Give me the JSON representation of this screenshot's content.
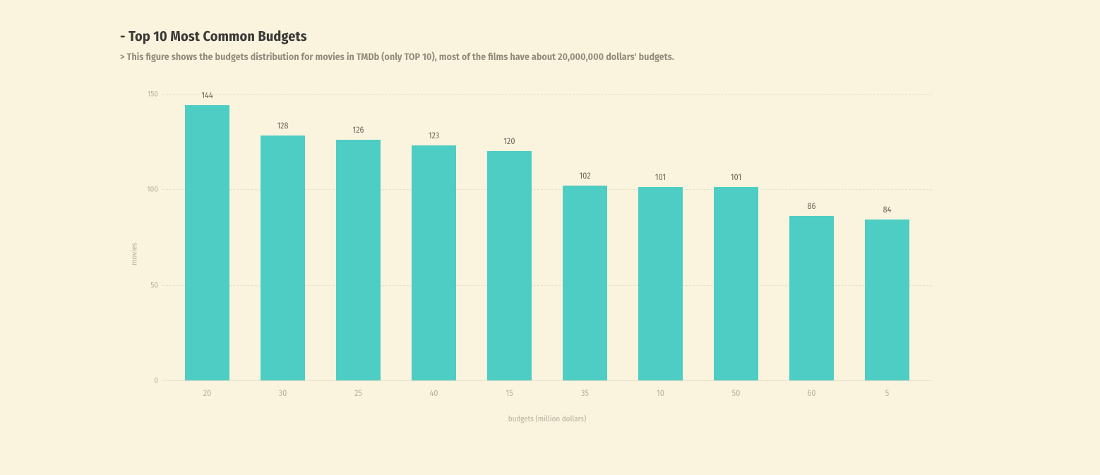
{
  "colors": {
    "page_bg": "#faf3dd",
    "title_text": "#3a3a36",
    "subtitle_text": "#8f8a7a",
    "axis_text": "#b7b0a0",
    "grid": "#e6dfc9",
    "value_label": "#6e6a5e",
    "bar": "#4ecdc4"
  },
  "header": {
    "title_prefix": "- ",
    "title": "Top 10 Most Common Budgets",
    "subtitle_prefix": "> ",
    "subtitle": "This figure shows the budgets distribution for movies in TMDb (only TOP 10), most of the films have about 20,000,000 dollars' budgets."
  },
  "chart": {
    "type": "bar",
    "ylabel": "movies",
    "xlabel": "budgets (million dollars)",
    "ylim": [
      0,
      155
    ],
    "yticks": [
      0,
      50,
      100,
      150
    ],
    "categories": [
      "20",
      "30",
      "25",
      "40",
      "15",
      "35",
      "10",
      "50",
      "60",
      "5"
    ],
    "values": [
      144,
      128,
      126,
      123,
      120,
      102,
      101,
      101,
      86,
      84
    ],
    "bar_width_pct": 58,
    "title_fontsize": 20,
    "subtitle_fontsize": 14,
    "tick_fontsize": 11,
    "value_fontsize": 12
  }
}
